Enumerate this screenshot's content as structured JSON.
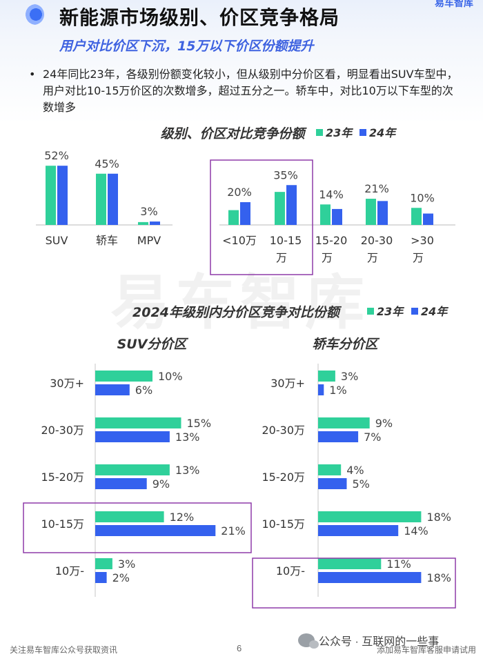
{
  "header": {
    "title": "新能源市场级别、价区竞争格局",
    "subtitle": "用户对比价区下沉，15万以下价区份额提升",
    "brand": "易车智库"
  },
  "bullet": "24年同比23年，各级别份额变化较小，但从级别中分价区看，明显看出SUV车型中，用户对比10-15万价区的次数增多，超过五分之一。轿车中，对比10万以下车型的次数增多",
  "watermark": "易车智库",
  "colors": {
    "y23": "#2fd09a",
    "y24": "#3461ee",
    "highlight": "#8e3aa8"
  },
  "chart_data": [
    {
      "type": "bar",
      "title": "级别、价区对比竞争份额",
      "legend": [
        "23年",
        "24年"
      ],
      "categories": [
        "SUV",
        "轿车",
        "MPV",
        "<10万",
        "10-15万",
        "15-20万",
        "20-30万",
        ">30万"
      ],
      "series": [
        {
          "name": "23年",
          "values": [
            52,
            45,
            2.5,
            13,
            29,
            18,
            23,
            15
          ]
        },
        {
          "name": "24年",
          "values": [
            52,
            45,
            3,
            20,
            35,
            14,
            21,
            10
          ]
        }
      ],
      "data_labels": [
        "52%",
        "45%",
        "3%",
        "20%",
        "35%",
        "14%",
        "21%",
        "10%"
      ],
      "highlighted_category": "10-15万"
    },
    {
      "type": "bar",
      "orientation": "horizontal",
      "title": "SUV分价区",
      "group_title": "2024年级别内分价区竞争对比份额",
      "legend": [
        "23年",
        "24年"
      ],
      "categories": [
        "30万+",
        "20-30万",
        "15-20万",
        "10-15万",
        "10万-"
      ],
      "series": [
        {
          "name": "23年",
          "values": [
            10,
            15,
            13,
            12,
            3
          ]
        },
        {
          "name": "24年",
          "values": [
            6,
            13,
            9,
            21,
            2
          ]
        }
      ],
      "highlighted_category": "10-15万"
    },
    {
      "type": "bar",
      "orientation": "horizontal",
      "title": "轿车分价区",
      "categories": [
        "30万+",
        "20-30万",
        "15-20万",
        "10-15万",
        "10万-"
      ],
      "series": [
        {
          "name": "23年",
          "values": [
            3,
            9,
            4,
            18,
            11
          ]
        },
        {
          "name": "24年",
          "values": [
            1,
            7,
            5,
            14,
            18
          ]
        }
      ],
      "highlighted_category": "10万-"
    }
  ],
  "footer": {
    "left": "关注易车智库公众号获取资讯",
    "page": "6",
    "wechat": "公众号 · 互联网的一些事",
    "right": "添加易车智库客服申请试用"
  }
}
